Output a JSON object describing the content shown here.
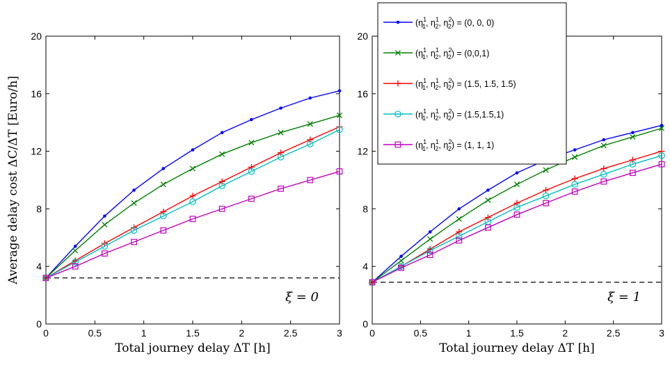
{
  "chart_data": [
    {
      "type": "line",
      "xlabel": "Total journey delay ΔT [h]",
      "ylabel": "Average delay cost ΔC/ΔT [Euro/h]",
      "annotation": "ξ = 0",
      "xlim": [
        0,
        3
      ],
      "ylim": [
        0,
        20
      ],
      "xticks": [
        "0",
        "0.5",
        "1",
        "1.5",
        "2",
        "2.5",
        "3"
      ],
      "yticks": [
        "0",
        "4",
        "8",
        "12",
        "16",
        "20"
      ],
      "grid": false,
      "reference_line": {
        "y": 3.2,
        "style": "dashed"
      },
      "x": [
        0,
        0.3,
        0.6,
        0.9,
        1.2,
        1.5,
        1.8,
        2.1,
        2.4,
        2.7,
        3.0
      ],
      "series": [
        {
          "name": "(η₁¹, η₂¹, η₂²) = (0, 0, 0)",
          "values": [
            3.2,
            5.4,
            7.5,
            9.3,
            10.8,
            12.1,
            13.3,
            14.2,
            15.0,
            15.7,
            16.2
          ]
        },
        {
          "name": "(η₁¹, η₂¹, η₂²) = (0,0,1)",
          "values": [
            3.2,
            5.1,
            6.9,
            8.4,
            9.7,
            10.8,
            11.8,
            12.6,
            13.3,
            13.9,
            14.5
          ]
        },
        {
          "name": "(η₁¹, η₂¹, η₂²) = (1.5, 1.5, 1.5)",
          "values": [
            3.2,
            4.4,
            5.6,
            6.7,
            7.8,
            8.9,
            9.9,
            10.9,
            11.9,
            12.8,
            13.7
          ]
        },
        {
          "name": "(η₁¹, η₂¹, η₂²) = (1.5,1.5,1)",
          "values": [
            3.2,
            4.3,
            5.4,
            6.5,
            7.5,
            8.5,
            9.6,
            10.6,
            11.6,
            12.5,
            13.5
          ]
        },
        {
          "name": "(η₁¹, η₂¹, η₂²) = (1, 1, 1)",
          "values": [
            3.2,
            4.0,
            4.9,
            5.7,
            6.5,
            7.3,
            8.0,
            8.7,
            9.4,
            10.0,
            10.6
          ]
        }
      ]
    },
    {
      "type": "line",
      "xlabel": "Total journey delay ΔT [h]",
      "ylabel": "",
      "annotation": "ξ = 1",
      "xlim": [
        0,
        3
      ],
      "ylim": [
        0,
        20
      ],
      "xticks": [
        "0",
        "0.5",
        "1",
        "1.5",
        "2",
        "2.5",
        "3"
      ],
      "yticks": [
        "0",
        "4",
        "8",
        "12",
        "16",
        "20"
      ],
      "grid": false,
      "reference_line": {
        "y": 2.9,
        "style": "dashed"
      },
      "x": [
        0,
        0.3,
        0.6,
        0.9,
        1.2,
        1.5,
        1.8,
        2.1,
        2.4,
        2.7,
        3.0
      ],
      "series": [
        {
          "name": "(η₁¹, η₂¹, η₂²) = (0, 0, 0)",
          "values": [
            2.9,
            4.7,
            6.4,
            8.0,
            9.3,
            10.5,
            11.4,
            12.1,
            12.8,
            13.3,
            13.8
          ]
        },
        {
          "name": "(η₁¹, η₂¹, η₂²) = (0,0,1)",
          "values": [
            2.9,
            4.4,
            5.9,
            7.3,
            8.6,
            9.7,
            10.7,
            11.6,
            12.4,
            13.0,
            13.6
          ]
        },
        {
          "name": "(η₁¹, η₂¹, η₂²) = (1.5, 1.5, 1.5)",
          "values": [
            2.9,
            4.0,
            5.2,
            6.4,
            7.4,
            8.4,
            9.3,
            10.1,
            10.8,
            11.4,
            12.0
          ]
        },
        {
          "name": "(η₁¹, η₂¹, η₂²) = (1.5,1.5,1)",
          "values": [
            2.9,
            4.0,
            5.1,
            6.1,
            7.1,
            8.1,
            8.9,
            9.7,
            10.4,
            11.1,
            11.7
          ]
        },
        {
          "name": "(η₁¹, η₂¹, η₂²) = (1, 1, 1)",
          "values": [
            2.9,
            3.9,
            4.8,
            5.8,
            6.7,
            7.6,
            8.4,
            9.2,
            9.9,
            10.5,
            11.1
          ]
        }
      ]
    }
  ],
  "legend": {
    "placement": "top-right of left panel, overlapping right panel",
    "entries": [
      {
        "prefix": "(η",
        "suffix": ") = (0, 0, 0)",
        "color": "#0000ff",
        "marker": "dot"
      },
      {
        "prefix": "(η",
        "suffix": ") = (0,0,1)",
        "color": "#008000",
        "marker": "x"
      },
      {
        "prefix": "(η",
        "suffix": ") = (1.5, 1.5, 1.5)",
        "color": "#ff0000",
        "marker": "plus"
      },
      {
        "prefix": "(η",
        "suffix": ") = (1.5,1.5,1)",
        "color": "#00bfbf",
        "marker": "circle"
      },
      {
        "prefix": "(η",
        "suffix": ") = (1, 1, 1)",
        "color": "#bf00bf",
        "marker": "square"
      }
    ]
  },
  "series_styles": [
    {
      "color": "#0000ff",
      "marker": "dot"
    },
    {
      "color": "#008000",
      "marker": "x"
    },
    {
      "color": "#ff0000",
      "marker": "plus"
    },
    {
      "color": "#00bfbf",
      "marker": "circle"
    },
    {
      "color": "#bf00bf",
      "marker": "square"
    }
  ]
}
